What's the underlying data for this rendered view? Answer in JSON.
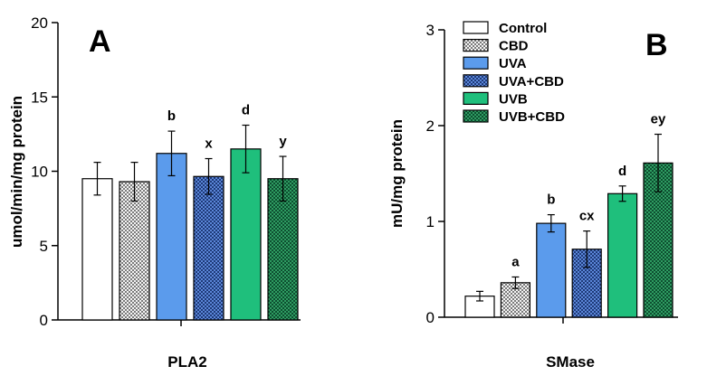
{
  "chart_data": [
    {
      "panel": "A",
      "type": "bar",
      "title": "A",
      "xlabel": "PLA2",
      "ylabel": "umol/min/mg protein",
      "ylim": [
        0,
        20
      ],
      "yticks": [
        0,
        5,
        10,
        15,
        20
      ],
      "categories": [
        "Control",
        "CBD",
        "UVA",
        "UVA+CBD",
        "UVB",
        "UVB+CBD"
      ],
      "values": [
        9.5,
        9.3,
        11.2,
        9.65,
        11.5,
        9.5
      ],
      "errors": [
        1.1,
        1.3,
        1.5,
        1.2,
        1.6,
        1.5
      ],
      "labels": [
        "",
        "",
        "b",
        "x",
        "d",
        "y"
      ]
    },
    {
      "panel": "B",
      "type": "bar",
      "title": "B",
      "xlabel": "SMase",
      "ylabel": "mU/mg protein",
      "ylim": [
        0,
        3
      ],
      "yticks": [
        0,
        1,
        2,
        3
      ],
      "categories": [
        "Control",
        "CBD",
        "UVA",
        "UVA+CBD",
        "UVB",
        "UVB+CBD"
      ],
      "values": [
        0.22,
        0.36,
        0.98,
        0.71,
        1.29,
        1.61
      ],
      "errors": [
        0.05,
        0.06,
        0.09,
        0.19,
        0.08,
        0.3
      ],
      "labels": [
        "",
        "a",
        "b",
        "cx",
        "d",
        "ey"
      ]
    }
  ],
  "legend": {
    "placement": "top-left of panel B",
    "items": [
      {
        "label": "Control",
        "pattern": "white"
      },
      {
        "label": "CBD",
        "pattern": "checker-gray"
      },
      {
        "label": "UVA",
        "pattern": "blue"
      },
      {
        "label": "UVA+CBD",
        "pattern": "checker-blue"
      },
      {
        "label": "UVB",
        "pattern": "green"
      },
      {
        "label": "UVB+CBD",
        "pattern": "checker-green"
      }
    ]
  },
  "colors": {
    "white": "#ffffff",
    "gray_light": "#f4f4f4",
    "gray_dark": "#7a7a7a",
    "blue": "#5b9bec",
    "blue_dark": "#1e3a78",
    "blue_light": "#5b86d8",
    "green": "#1fbf7c",
    "green_dark": "#0d4f30",
    "green_light": "#2f9c62"
  }
}
